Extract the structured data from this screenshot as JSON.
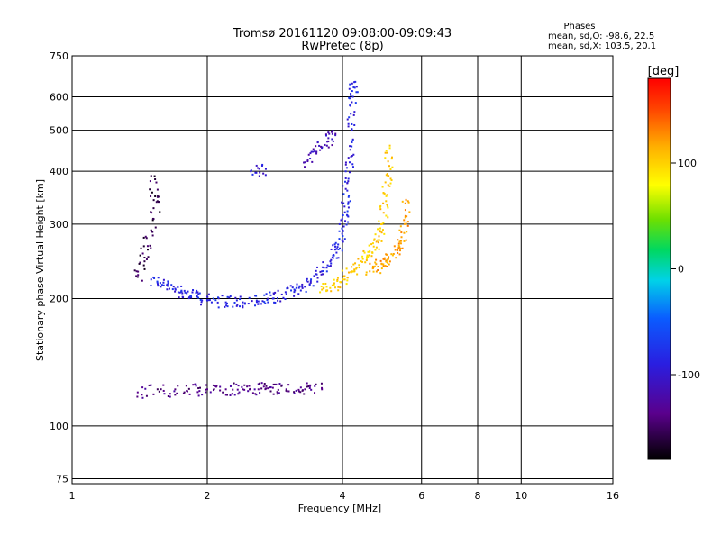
{
  "chart_data": {
    "type": "scatter",
    "title": "Tromsø 20161120 09:08:00-09:09:43",
    "subtitle": "RwPretec (8p)",
    "xlabel": "Frequency [MHz]",
    "ylabel": "Stationary phase Virtual Height [km]",
    "x_scale": "log",
    "y_scale": "log",
    "xlim": [
      1,
      16
    ],
    "ylim": [
      73,
      750
    ],
    "x_ticks": [
      1,
      2,
      4,
      6,
      8,
      10,
      16
    ],
    "x_tick_labels": [
      "1",
      "2",
      "4",
      "6",
      "8",
      "10",
      "16"
    ],
    "y_ticks": [
      75,
      100,
      200,
      300,
      400,
      500,
      600,
      750
    ],
    "y_tick_labels": [
      "75",
      "100",
      "200",
      "300",
      "400",
      "500",
      "600",
      "750"
    ],
    "grid": true,
    "phases_box": {
      "title": "Phases",
      "line_o": "mean, sd,O: -98.6, 22.5",
      "line_x": "mean, sd,X: 103.5, 20.1"
    },
    "colorbar": {
      "label": "[deg]",
      "range": [
        -180,
        180
      ],
      "ticks": [
        -100,
        0,
        100
      ],
      "tick_labels": [
        "-100",
        "0",
        "100"
      ]
    },
    "series": [
      {
        "trace": "O",
        "color_deg": -98.6,
        "points": [
          [
            1.5,
            222
          ],
          [
            1.6,
            215
          ],
          [
            1.7,
            210
          ],
          [
            1.8,
            206
          ],
          [
            1.9,
            202
          ],
          [
            2.0,
            198
          ],
          [
            2.2,
            196
          ],
          [
            2.4,
            196
          ],
          [
            2.6,
            197
          ],
          [
            2.8,
            200
          ],
          [
            3.0,
            205
          ],
          [
            3.2,
            212
          ],
          [
            3.4,
            220
          ],
          [
            3.6,
            232
          ],
          [
            3.8,
            250
          ],
          [
            3.9,
            265
          ],
          [
            4.0,
            290
          ],
          [
            4.05,
            320
          ],
          [
            4.1,
            360
          ],
          [
            4.15,
            420
          ],
          [
            4.2,
            500
          ],
          [
            4.22,
            600
          ],
          [
            4.25,
            650
          ]
        ]
      },
      {
        "trace": "X",
        "color_deg": 103.5,
        "points": [
          [
            3.6,
            210
          ],
          [
            3.8,
            215
          ],
          [
            4.0,
            222
          ],
          [
            4.2,
            232
          ],
          [
            4.4,
            245
          ],
          [
            4.6,
            258
          ],
          [
            4.8,
            275
          ],
          [
            4.9,
            300
          ],
          [
            5.0,
            340
          ],
          [
            5.05,
            390
          ],
          [
            5.1,
            460
          ]
        ]
      },
      {
        "trace": "X2",
        "color_deg": 120,
        "points": [
          [
            4.6,
            232
          ],
          [
            4.8,
            238
          ],
          [
            5.0,
            245
          ],
          [
            5.2,
            255
          ],
          [
            5.4,
            270
          ],
          [
            5.5,
            300
          ],
          [
            5.6,
            340
          ]
        ]
      },
      {
        "trace": "O-upper",
        "color_deg": -120,
        "points": [
          [
            3.3,
            420
          ],
          [
            3.5,
            445
          ],
          [
            3.7,
            470
          ],
          [
            3.8,
            490
          ]
        ]
      },
      {
        "trace": "O-upper-short",
        "color_deg": -105,
        "points": [
          [
            2.5,
            400
          ],
          [
            2.7,
            405
          ]
        ]
      },
      {
        "trace": "E-layer",
        "color_deg": -140,
        "points": [
          [
            1.4,
            120
          ],
          [
            1.6,
            121
          ],
          [
            1.8,
            121
          ],
          [
            2.0,
            122
          ],
          [
            2.2,
            122
          ],
          [
            2.4,
            122
          ],
          [
            2.6,
            122
          ],
          [
            2.8,
            123
          ],
          [
            3.0,
            122
          ],
          [
            3.3,
            122
          ],
          [
            3.6,
            122
          ]
        ]
      },
      {
        "trace": "Es-vertical",
        "color_deg": -160,
        "points": [
          [
            1.5,
            390
          ],
          [
            1.55,
            340
          ],
          [
            1.5,
            290
          ],
          [
            1.45,
            250
          ],
          [
            1.4,
            225
          ]
        ]
      }
    ]
  }
}
